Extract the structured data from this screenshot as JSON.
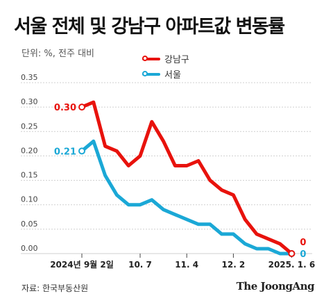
{
  "title": "서울 전체 및 강남구 아파트값 변동률",
  "unit": "단위: %, 전주 대비",
  "source": "자료: 한국부동산원",
  "brand": "The JoongAng",
  "colors": {
    "gangnam": "#e8120c",
    "seoul": "#1ba8d6",
    "grid": "#cfcfcf"
  },
  "chart_data": {
    "type": "line",
    "ylim": [
      0,
      0.35
    ],
    "yticks": [
      "0.35",
      "0.30",
      "0.25",
      "0.20",
      "0.15",
      "0.10",
      "0.05",
      "0.00"
    ],
    "x_tick_labels": [
      "2024년 9월 2일",
      "10. 7",
      "11. 4",
      "12. 2",
      "2025. 1. 6"
    ],
    "x_tick_indices": [
      0,
      5,
      9,
      13,
      18
    ],
    "series": [
      {
        "name": "강남구",
        "values": [
          0.3,
          0.31,
          0.22,
          0.21,
          0.18,
          0.2,
          0.27,
          0.23,
          0.18,
          0.18,
          0.19,
          0.15,
          0.13,
          0.12,
          0.07,
          0.04,
          0.03,
          0.02,
          0.0
        ],
        "start_label": "0.30",
        "end_label": "0"
      },
      {
        "name": "서울",
        "values": [
          0.21,
          0.23,
          0.16,
          0.12,
          0.1,
          0.1,
          0.11,
          0.09,
          0.08,
          0.07,
          0.06,
          0.06,
          0.04,
          0.04,
          0.02,
          0.01,
          0.01,
          0.0,
          0.0
        ],
        "start_label": "0.21",
        "end_label": "0"
      }
    ]
  }
}
